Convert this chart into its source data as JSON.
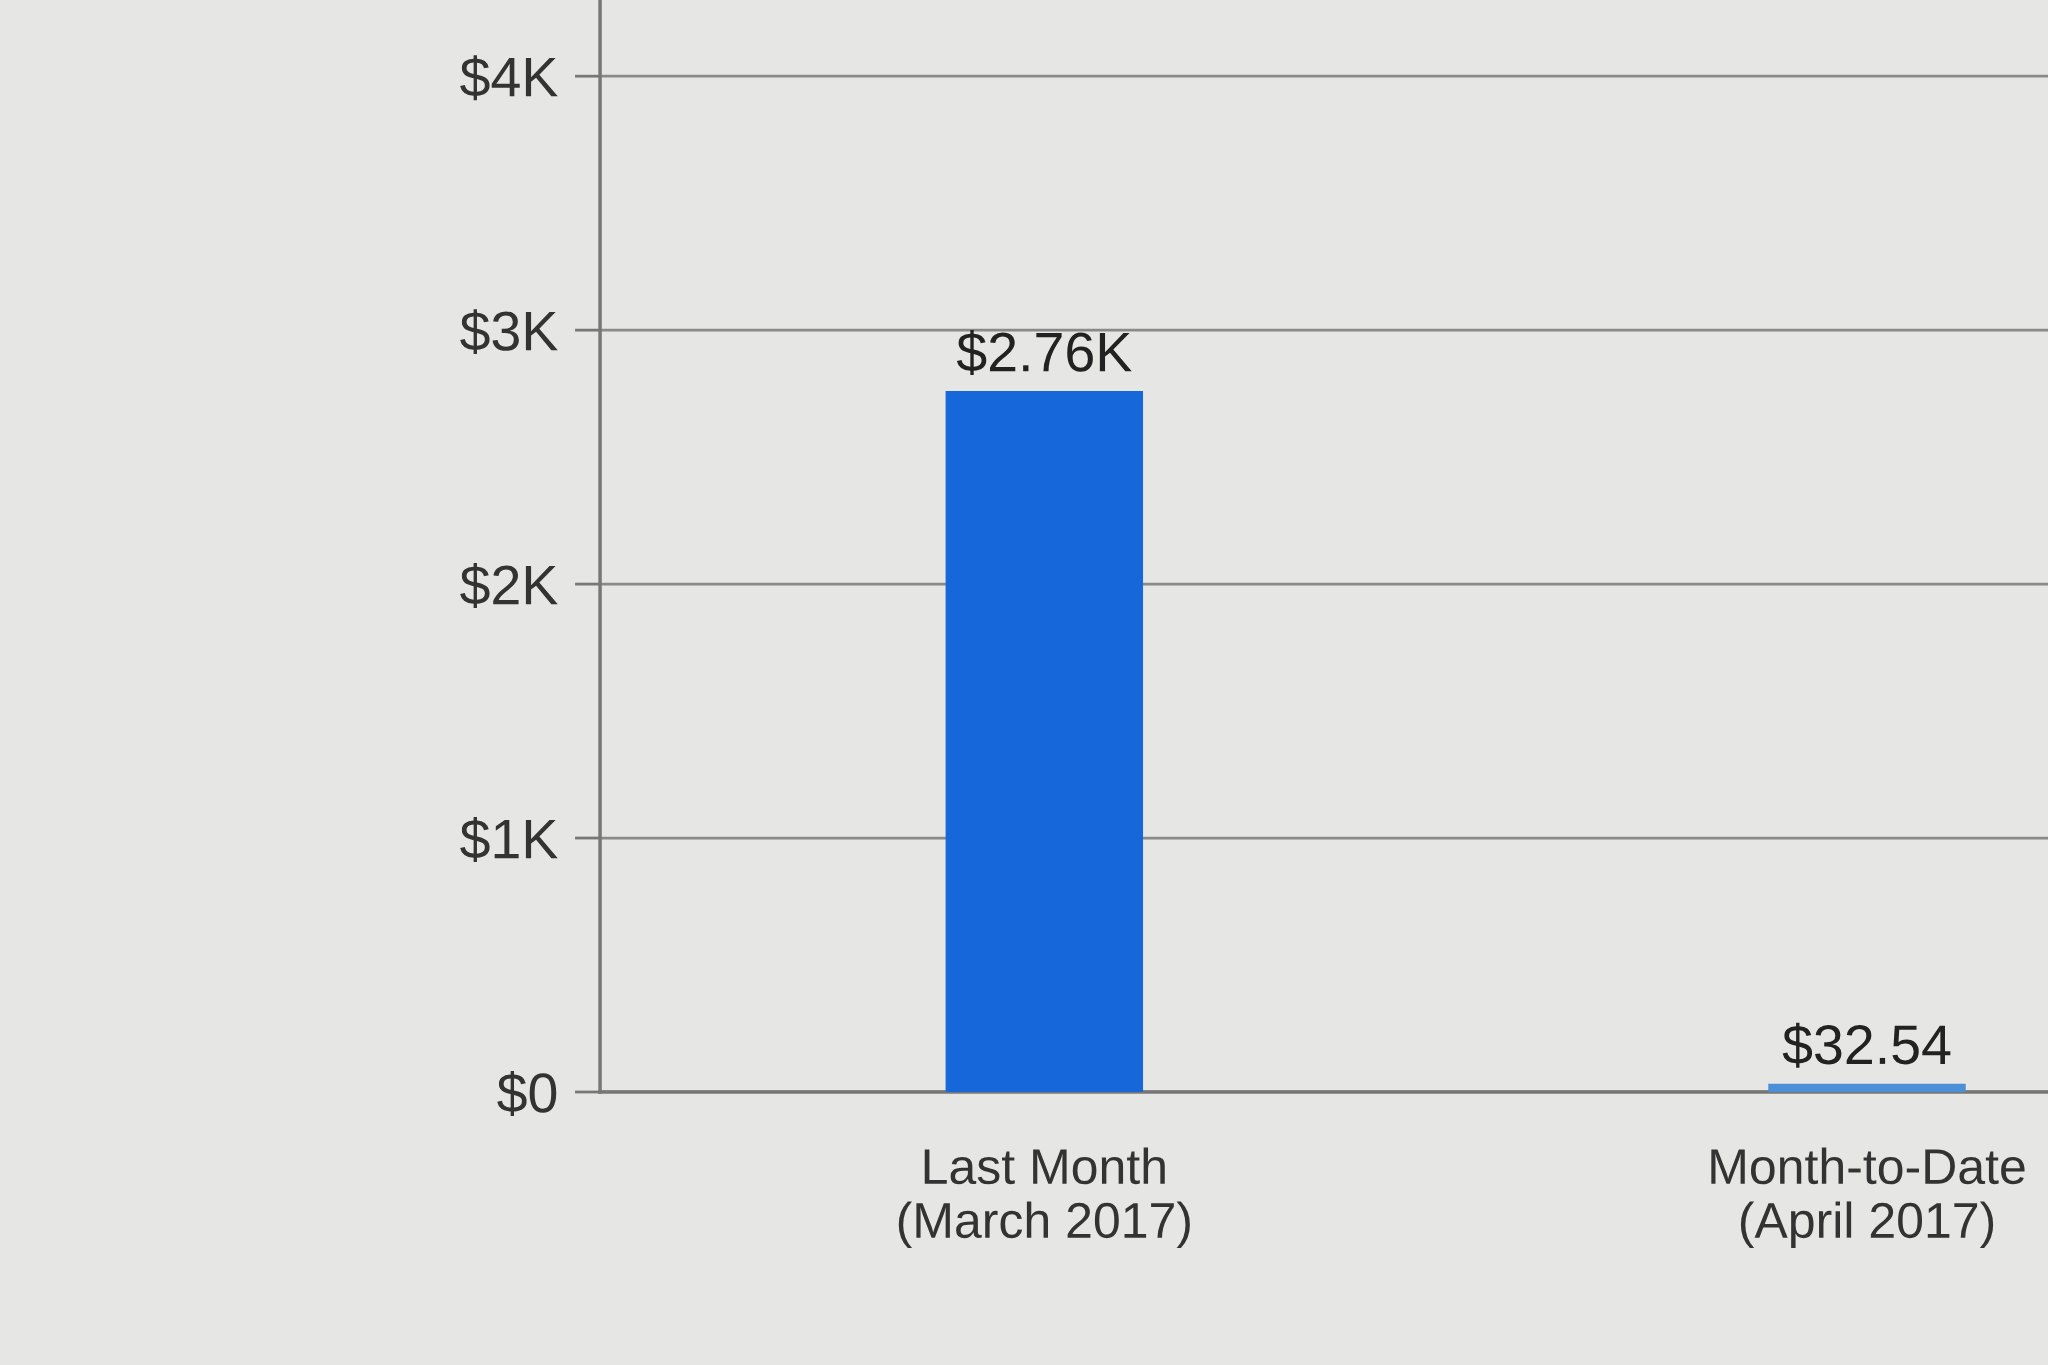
{
  "chart_data": {
    "type": "bar",
    "categories": [
      "Last Month\n(March 2017)",
      "Month-to-Date\n(April 2017)"
    ],
    "values": [
      2760,
      32.54
    ],
    "value_labels": [
      "$2.76K",
      "$32.54"
    ],
    "colors": [
      "#1667d9",
      "#4a8fd8"
    ],
    "ylim": [
      0,
      4300
    ],
    "yticks": [
      {
        "value": 0,
        "label": "$0"
      },
      {
        "value": 1000,
        "label": "$1K"
      },
      {
        "value": 2000,
        "label": "$2K"
      },
      {
        "value": 3000,
        "label": "$3K"
      },
      {
        "value": 4000,
        "label": "$4K"
      }
    ],
    "grid": "y",
    "legend": false
  }
}
